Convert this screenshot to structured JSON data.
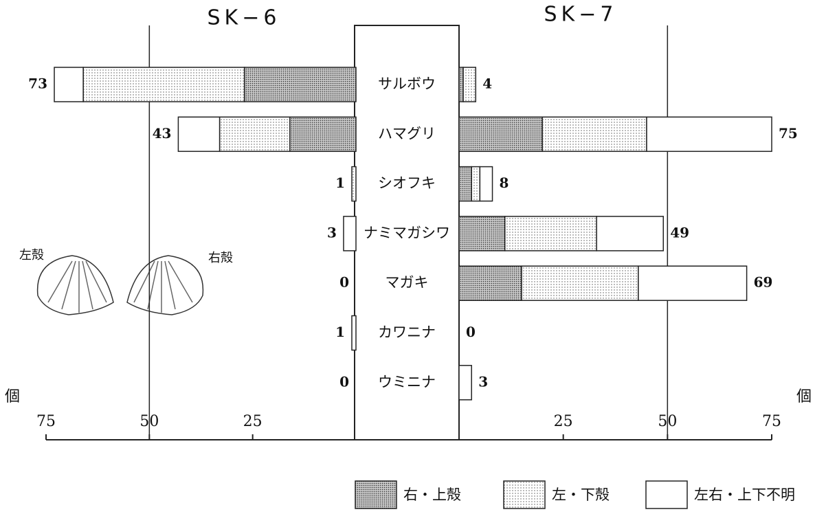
{
  "chart_data": {
    "type": "bar",
    "categories": [
      "サルボウ",
      "ハマグリ",
      "シオフキ",
      "ナミマガシワ",
      "マガキ",
      "カワニナ",
      "ウミニナ"
    ],
    "series": [
      {
        "name": "右・上殻",
        "pattern": "dense"
      },
      {
        "name": "左・下殻",
        "pattern": "sparse"
      },
      {
        "name": "左右・上下不明",
        "pattern": "none"
      }
    ],
    "unit_label": "個",
    "annotations": [
      "左殻",
      "右殻"
    ],
    "panels": [
      {
        "title": "SK−6",
        "side": "left",
        "series_values": [
          [
            27,
            16,
            0,
            0,
            0,
            0,
            0
          ],
          [
            39,
            17,
            1,
            0,
            0,
            0,
            0
          ],
          [
            7,
            10,
            0,
            3,
            0,
            1,
            0
          ]
        ],
        "totals": [
          73,
          43,
          1,
          3,
          0,
          1,
          0
        ],
        "xlim": [
          0,
          75
        ],
        "xticks": [
          25,
          50,
          75
        ],
        "grid": [
          50
        ]
      },
      {
        "title": "SK−7",
        "side": "right",
        "series_values": [
          [
            1,
            20,
            3,
            11,
            15,
            0,
            0
          ],
          [
            3,
            25,
            2,
            22,
            28,
            0,
            0
          ],
          [
            0,
            30,
            3,
            16,
            26,
            0,
            3
          ]
        ],
        "totals": [
          4,
          75,
          8,
          49,
          69,
          0,
          3
        ],
        "xlim": [
          0,
          75
        ],
        "xticks": [
          25,
          50,
          75
        ],
        "grid": [
          50
        ]
      }
    ]
  }
}
